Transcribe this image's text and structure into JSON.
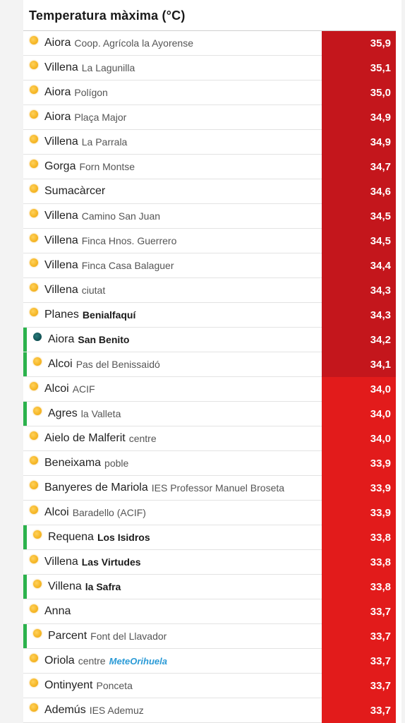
{
  "title": "Temperatura màxima (°C)",
  "colors": {
    "value_dark_red": "#c4161c",
    "value_red": "#e21b1b",
    "marker_green": "#2bb24c",
    "sun_yellow": "#f5b625"
  },
  "rows": [
    {
      "town": "Aiora",
      "station": "Coop. Agrícola la Ayorense",
      "value": "35,9",
      "icon": "sun-icon"
    },
    {
      "town": "Villena",
      "station": "La Lagunilla",
      "value": "35,1",
      "icon": "sun-icon"
    },
    {
      "town": "Aiora",
      "station": "Polígon",
      "value": "35,0",
      "icon": "sun-icon"
    },
    {
      "town": "Aiora",
      "station": "Plaça Major",
      "value": "34,9",
      "icon": "sun-icon"
    },
    {
      "town": "Villena",
      "station": "La Parrala",
      "value": "34,9",
      "icon": "sun-icon"
    },
    {
      "town": "Gorga",
      "station": "Forn Montse",
      "value": "34,7",
      "icon": "sun-icon"
    },
    {
      "town": "Sumacàrcer",
      "station": "",
      "value": "34,6",
      "icon": "sun-icon"
    },
    {
      "town": "Villena",
      "station": "Camino San Juan",
      "value": "34,5",
      "icon": "sun-icon"
    },
    {
      "town": "Villena",
      "station": "Finca Hnos. Guerrero",
      "value": "34,5",
      "icon": "sun-icon"
    },
    {
      "town": "Villena",
      "station": "Finca Casa Balaguer",
      "value": "34,4",
      "icon": "sun-icon"
    },
    {
      "town": "Villena",
      "station": "ciutat",
      "value": "34,3",
      "icon": "sun-icon"
    },
    {
      "town": "Planes",
      "station": "Benialfaquí",
      "value": "34,3",
      "icon": "sun-icon"
    },
    {
      "town": "Aiora",
      "station": "San Benito",
      "value": "34,2",
      "icon": "dot-icon"
    },
    {
      "town": "Alcoi",
      "station": "Pas del Benissaidó",
      "value": "34,1",
      "icon": "sun-icon"
    },
    {
      "town": "Alcoi",
      "station": "ACIF",
      "value": "34,0",
      "icon": "sun-icon"
    },
    {
      "town": "Agres",
      "station": "la Valleta",
      "value": "34,0",
      "icon": "sun-icon"
    },
    {
      "town": "Aielo de Malferit",
      "station": "centre",
      "value": "34,0",
      "icon": "sun-icon"
    },
    {
      "town": "Beneixama",
      "station": "poble",
      "value": "33,9",
      "icon": "sun-icon"
    },
    {
      "town": "Banyeres de Mariola",
      "station": "IES Professor Manuel Broseta",
      "value": "33,9",
      "icon": "sun-icon"
    },
    {
      "town": "Alcoi",
      "station": "Baradello (ACIF)",
      "value": "33,9",
      "icon": "sun-icon"
    },
    {
      "town": "Requena",
      "station": "Los Isidros",
      "value": "33,8",
      "icon": "sun-icon"
    },
    {
      "town": "Villena",
      "station": "Las Virtudes",
      "value": "33,8",
      "icon": "sun-icon"
    },
    {
      "town": "Villena",
      "station": "la Safra",
      "value": "33,8",
      "icon": "sun-icon"
    },
    {
      "town": "Anna",
      "station": "",
      "value": "33,7",
      "icon": "sun-icon"
    },
    {
      "town": "Parcent",
      "station": "Font del Llavador",
      "value": "33,7",
      "icon": "sun-icon"
    },
    {
      "town": "Oriola",
      "station": "centre",
      "logo": "MeteOrihuela",
      "value": "33,7",
      "icon": "sun-icon"
    },
    {
      "town": "Ontinyent",
      "station": "Ponceta",
      "value": "33,7",
      "icon": "sun-icon"
    },
    {
      "town": "Ademús",
      "station": "IES Ademuz",
      "value": "33,7",
      "icon": "sun-icon"
    }
  ]
}
